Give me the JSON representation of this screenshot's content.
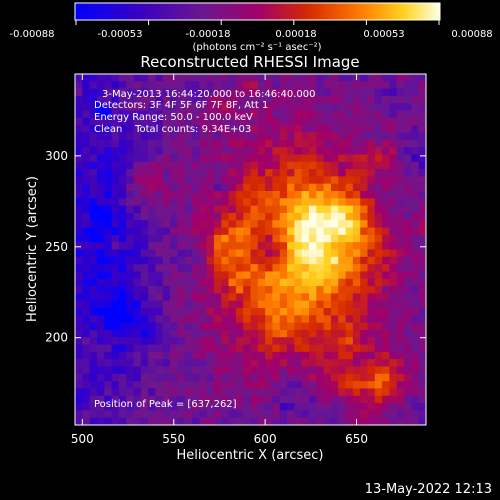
{
  "chart_data": {
    "type": "heatmap",
    "title": "Reconstructed RHESSI Image",
    "xlabel": "Heliocentric X (arcsec)",
    "ylabel": "Heliocentric Y (arcsec)",
    "xlim": [
      496,
      688
    ],
    "ylim": [
      152,
      345
    ],
    "x_ticks": [
      500,
      550,
      600,
      650
    ],
    "y_ticks": [
      200,
      250,
      300
    ],
    "colorbar": {
      "label": "(photons cm⁻² s⁻¹ asec⁻²)",
      "range": [
        -0.00088,
        0.00088
      ],
      "ticks": [
        "-0.00088",
        "-0.00053",
        "-0.00018",
        "0.00018",
        "0.00053",
        "0.00088"
      ]
    },
    "annotations": [
      "3-May-2013 16:44:20.000 to 16:46:40.000",
      "Detectors: 3F 4F 5F 6F 7F 8F, Att 1",
      "Energy Range: 50.0 - 100.0 keV",
      "Clean    Total counts: 9.34E+03"
    ],
    "peak_label": "Position of Peak = [637,262]",
    "peak": [
      637,
      262
    ],
    "colors": {
      "stops": [
        "#0000ff",
        "#3b00c0",
        "#6a1890",
        "#a0006a",
        "#d62a00",
        "#ff7a00",
        "#ffd21e",
        "#ffffe6"
      ]
    }
  },
  "footer": {
    "timestamp": "13-May-2022 12:13"
  }
}
